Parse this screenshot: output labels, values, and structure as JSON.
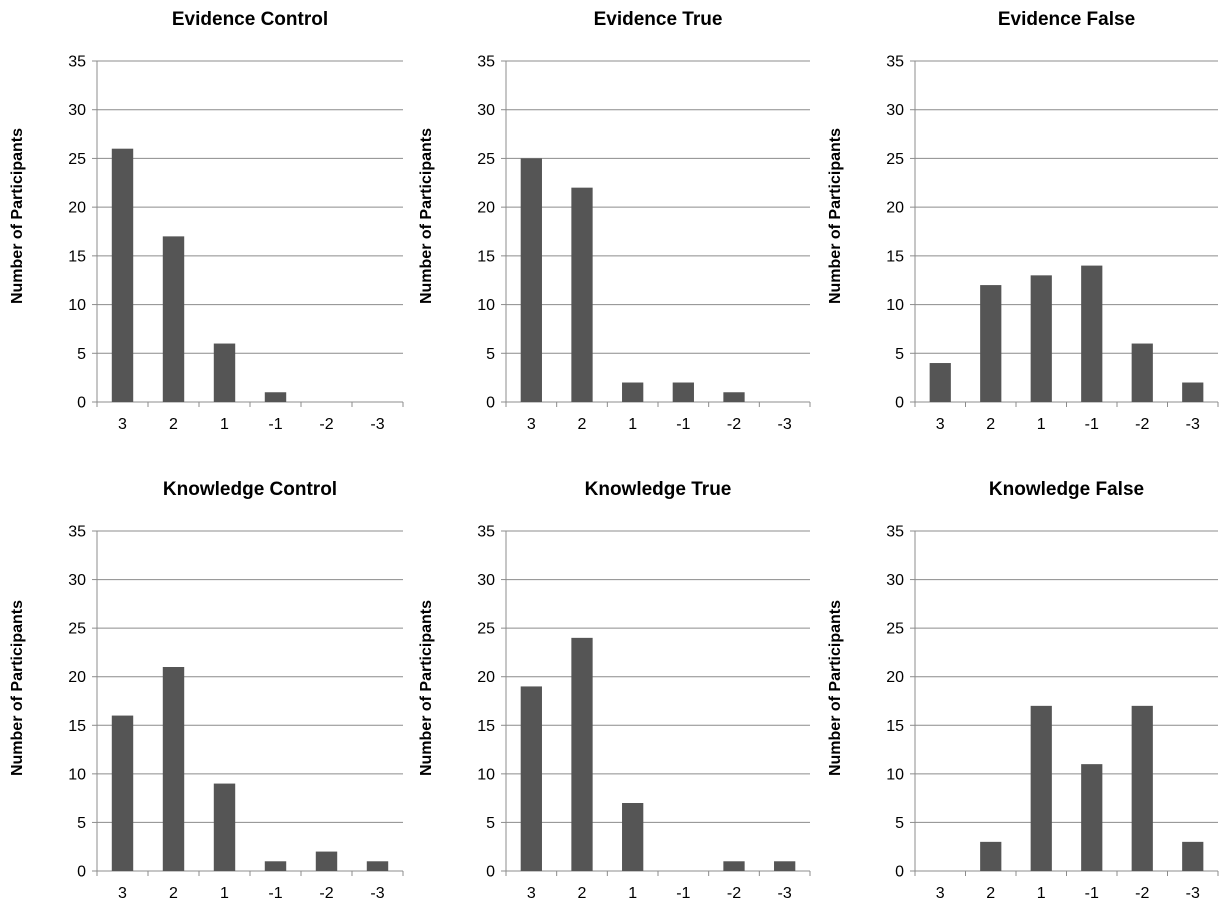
{
  "figure": {
    "bar_color": "#555555",
    "grid_color": "#8c8c8c"
  },
  "chart_data": [
    {
      "type": "bar",
      "title": "Evidence Control",
      "xlabel": "",
      "ylabel": "Number of Participants",
      "categories": [
        "3",
        "2",
        "1",
        "-1",
        "-2",
        "-3"
      ],
      "values": [
        26,
        17,
        6,
        1,
        0,
        0
      ],
      "ylim": [
        0,
        35
      ],
      "yticks": [
        0,
        5,
        10,
        15,
        20,
        25,
        30,
        35
      ],
      "grid": true,
      "legend": "none"
    },
    {
      "type": "bar",
      "title": "Evidence True",
      "xlabel": "",
      "ylabel": "Number of Participants",
      "categories": [
        "3",
        "2",
        "1",
        "-1",
        "-2",
        "-3"
      ],
      "values": [
        25,
        22,
        2,
        2,
        1,
        0
      ],
      "ylim": [
        0,
        35
      ],
      "yticks": [
        0,
        5,
        10,
        15,
        20,
        25,
        30,
        35
      ],
      "grid": true,
      "legend": "none"
    },
    {
      "type": "bar",
      "title": "Evidence False",
      "xlabel": "",
      "ylabel": "Number of Participants",
      "categories": [
        "3",
        "2",
        "1",
        "-1",
        "-2",
        "-3"
      ],
      "values": [
        4,
        12,
        13,
        14,
        6,
        2
      ],
      "ylim": [
        0,
        35
      ],
      "yticks": [
        0,
        5,
        10,
        15,
        20,
        25,
        30,
        35
      ],
      "grid": true,
      "legend": "none"
    },
    {
      "type": "bar",
      "title": "Knowledge Control",
      "xlabel": "",
      "ylabel": "Number of Participants",
      "categories": [
        "3",
        "2",
        "1",
        "-1",
        "-2",
        "-3"
      ],
      "values": [
        16,
        21,
        9,
        1,
        2,
        1
      ],
      "ylim": [
        0,
        35
      ],
      "yticks": [
        0,
        5,
        10,
        15,
        20,
        25,
        30,
        35
      ],
      "grid": true,
      "legend": "none"
    },
    {
      "type": "bar",
      "title": "Knowledge True",
      "xlabel": "",
      "ylabel": "Number of Participants",
      "categories": [
        "3",
        "2",
        "1",
        "-1",
        "-2",
        "-3"
      ],
      "values": [
        19,
        24,
        7,
        0,
        1,
        1
      ],
      "ylim": [
        0,
        35
      ],
      "yticks": [
        0,
        5,
        10,
        15,
        20,
        25,
        30,
        35
      ],
      "grid": true,
      "legend": "none"
    },
    {
      "type": "bar",
      "title": "Knowledge False",
      "xlabel": "",
      "ylabel": "Number of Participants",
      "categories": [
        "3",
        "2",
        "1",
        "-1",
        "-2",
        "-3"
      ],
      "values": [
        0,
        3,
        17,
        11,
        17,
        3
      ],
      "ylim": [
        0,
        35
      ],
      "yticks": [
        0,
        5,
        10,
        15,
        20,
        25,
        30,
        35
      ],
      "grid": true,
      "legend": "none"
    }
  ]
}
